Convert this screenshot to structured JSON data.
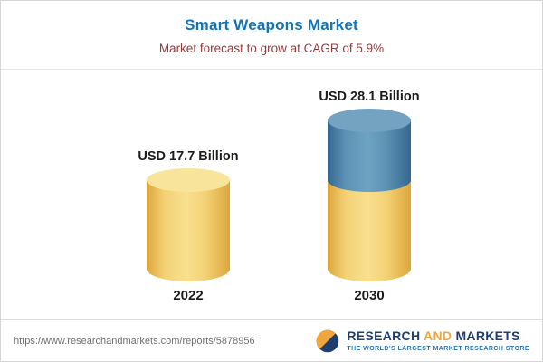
{
  "header": {
    "title": "Smart Weapons Market",
    "subtitle": "Market forecast to grow at CAGR of 5.9%"
  },
  "chart_data": {
    "type": "bar",
    "variant": "3d-cylinder-stacked",
    "categories": [
      "2022",
      "2030"
    ],
    "values": [
      17.7,
      28.1
    ],
    "value_labels": [
      "USD 17.7 Billion",
      "USD 28.1 Billion"
    ],
    "unit": "USD Billion",
    "cagr_pct": 5.9,
    "ylim": [
      0,
      30
    ],
    "legend": "none",
    "grid": false,
    "colors": {
      "base_segment": "#F2CF6B",
      "growth_segment": "#4E86AD"
    }
  },
  "footer": {
    "source_url": "https://www.researchandmarkets.com/reports/5878956",
    "brand": {
      "research": "RESEARCH",
      "and": "AND",
      "markets": "MARKETS",
      "tagline": "THE WORLD'S LARGEST MARKET RESEARCH STORE"
    }
  }
}
